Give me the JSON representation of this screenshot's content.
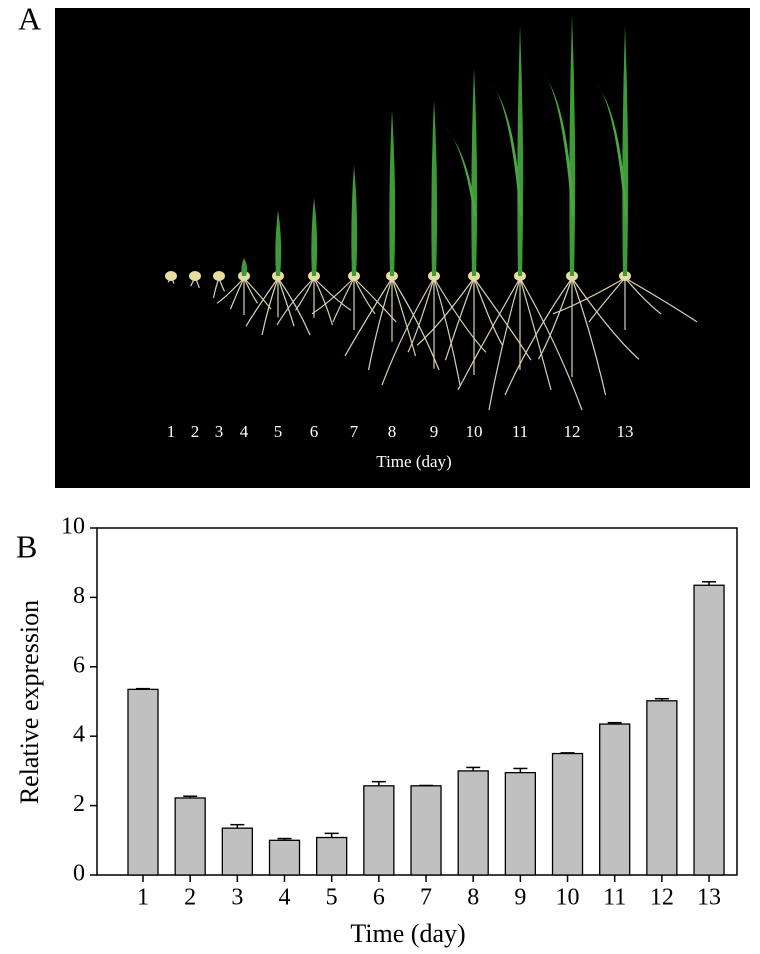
{
  "panel_labels": [
    "A",
    "B"
  ],
  "photo": {
    "day_labels": [
      "1",
      "2",
      "3",
      "4",
      "5",
      "6",
      "7",
      "8",
      "9",
      "10",
      "11",
      "12",
      "13"
    ],
    "axis_label": "Time (day)"
  },
  "chart_data": {
    "type": "bar",
    "x_label": "Time (day)",
    "y_label": "Relative expression",
    "categories": [
      "1",
      "2",
      "3",
      "4",
      "5",
      "6",
      "7",
      "8",
      "9",
      "10",
      "11",
      "12",
      "13"
    ],
    "series": [
      {
        "color": "#c0c0c0",
        "values": [
          5.35,
          2.22,
          1.35,
          1.0,
          1.08,
          2.57,
          2.57,
          3.0,
          2.95,
          3.5,
          4.35,
          5.02,
          8.35
        ],
        "errors": [
          0.02,
          0.05,
          0.1,
          0.05,
          0.12,
          0.12,
          0.01,
          0.1,
          0.12,
          0.02,
          0.04,
          0.06,
          0.1
        ]
      }
    ],
    "ylim": [
      0,
      10
    ],
    "yticks": [
      0,
      2,
      4,
      6,
      8,
      10
    ],
    "grid": false
  }
}
